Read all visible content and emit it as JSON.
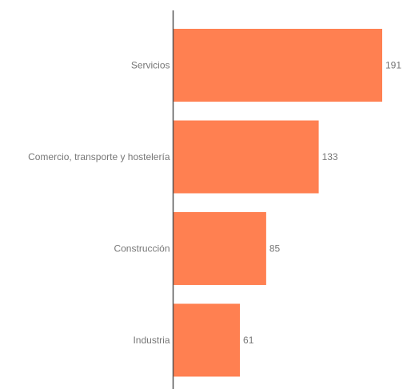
{
  "chart_data": {
    "type": "bar",
    "orientation": "horizontal",
    "categories": [
      "Servicios",
      "Comercio, transporte y hostelería",
      "Construcción",
      "Industria"
    ],
    "values": [
      191,
      133,
      85,
      61
    ],
    "xlim": [
      0,
      191
    ],
    "grid": false,
    "bar_color": "#ff8051",
    "axis_color": "#555555",
    "label_color": "#777777"
  }
}
